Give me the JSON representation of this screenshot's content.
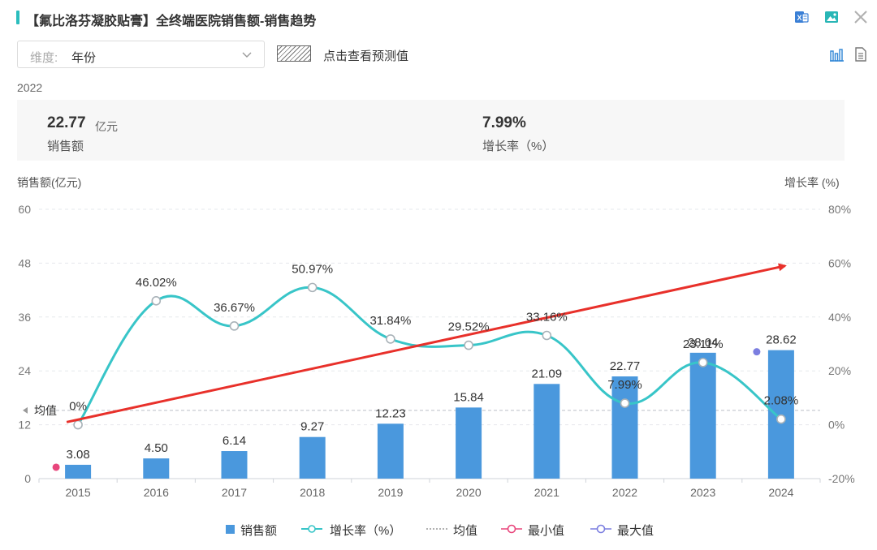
{
  "header": {
    "title": "【氟比洛芬凝胶贴膏】全终端医院销售额-销售趋势",
    "icons": [
      "excel-export-icon",
      "image-export-icon",
      "close-icon"
    ]
  },
  "toolbar": {
    "dimension_label": "维度:",
    "dimension_value": "年份",
    "forecast_label": "点击查看预测值",
    "icons": [
      "bar-chart-view-icon",
      "table-view-icon"
    ]
  },
  "summary": {
    "year": "2022",
    "sales_value": "22.77",
    "sales_unit": "亿元",
    "sales_label": "销售额",
    "growth_value": "7.99%",
    "growth_label": "增长率（%）"
  },
  "axes": {
    "left_title": "销售额(亿元)",
    "right_title": "增长率 (%)"
  },
  "legend": {
    "sales": "销售额",
    "growth": "增长率（%）",
    "average": "均值",
    "min": "最小值",
    "max": "最大值"
  },
  "colors": {
    "bar": "#4a98dd",
    "growth_line": "#38c5c8",
    "average_line": "#c8ccd2",
    "min_marker": "#e8467c",
    "max_marker": "#7b7ee0",
    "trend_arrow": "#e8302a",
    "accent": "#2bbdbd"
  },
  "chart_data": {
    "type": "bar",
    "categories": [
      "2015",
      "2016",
      "2017",
      "2018",
      "2019",
      "2020",
      "2021",
      "2022",
      "2023",
      "2024"
    ],
    "series": [
      {
        "name": "销售额",
        "type": "bar",
        "axis": "left",
        "values": [
          3.08,
          4.5,
          6.14,
          9.27,
          12.23,
          15.84,
          21.09,
          22.77,
          28.04,
          28.62
        ],
        "labels": [
          "3.08",
          "4.50",
          "6.14",
          "9.27",
          "12.23",
          "15.84",
          "21.09",
          "22.77",
          "28.04",
          "28.62"
        ]
      },
      {
        "name": "增长率（%）",
        "type": "line",
        "axis": "right",
        "values": [
          0,
          46.02,
          36.67,
          50.97,
          31.84,
          29.52,
          33.16,
          7.99,
          23.11,
          2.08
        ],
        "labels": [
          "0%",
          "46.02%",
          "36.67%",
          "50.97%",
          "31.84%",
          "29.52%",
          "33.16%",
          "7.99%",
          "23.11%",
          "2.08%"
        ]
      }
    ],
    "average": {
      "label": "均值",
      "value": 15.2
    },
    "min_point": {
      "category": "2015",
      "value": 3.08
    },
    "max_point": {
      "category": "2024",
      "value": 28.62
    },
    "left_axis": {
      "ticks": [
        "0",
        "12",
        "24",
        "36",
        "48",
        "60"
      ],
      "ylim": [
        0,
        60
      ]
    },
    "right_axis": {
      "ticks": [
        "-20%",
        "0%",
        "20%",
        "40%",
        "60%",
        "80%"
      ],
      "ylim": [
        -20,
        80
      ]
    },
    "grid": true,
    "legend_position": "bottom",
    "trend_arrow": {
      "from": {
        "category": "2015",
        "growth": 1
      },
      "to": {
        "category": "2024",
        "growth": 59
      }
    }
  }
}
